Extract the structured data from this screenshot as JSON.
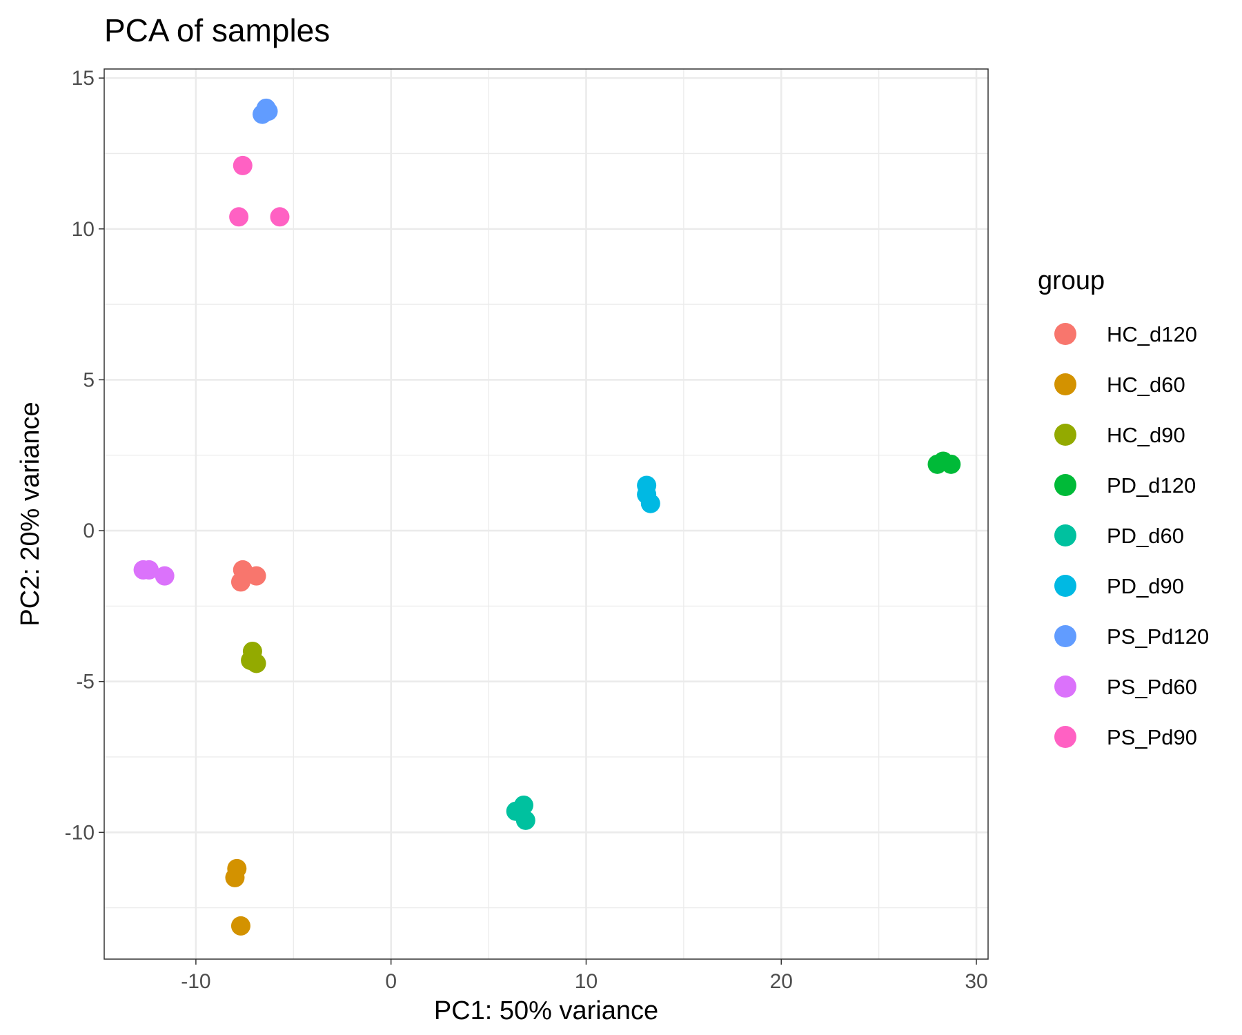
{
  "chart_data": {
    "type": "scatter",
    "title": "PCA of samples",
    "xlabel": "PC1: 50% variance",
    "ylabel": "PC2: 20% variance",
    "xlim": [
      -14.7,
      30.6
    ],
    "ylim": [
      -14.2,
      15.3
    ],
    "xticks": [
      -10,
      0,
      10,
      20,
      30
    ],
    "yticks": [
      -10,
      -5,
      0,
      5,
      10,
      15
    ],
    "grid": true,
    "legend": {
      "title": "group",
      "position": "right"
    },
    "series": [
      {
        "name": "HC_d120",
        "color": "#F8766D",
        "points": [
          [
            -7.6,
            -1.3
          ],
          [
            -6.9,
            -1.5
          ],
          [
            -7.7,
            -1.7
          ]
        ]
      },
      {
        "name": "HC_d60",
        "color": "#D39200",
        "points": [
          [
            -7.9,
            -11.2
          ],
          [
            -8.0,
            -11.5
          ],
          [
            -7.7,
            -13.1
          ]
        ]
      },
      {
        "name": "HC_d90",
        "color": "#93AA00",
        "points": [
          [
            -7.1,
            -4.0
          ],
          [
            -7.2,
            -4.3
          ],
          [
            -6.9,
            -4.4
          ]
        ]
      },
      {
        "name": "PD_d120",
        "color": "#00BA38",
        "points": [
          [
            28.0,
            2.2
          ],
          [
            28.3,
            2.3
          ],
          [
            28.7,
            2.2
          ]
        ]
      },
      {
        "name": "PD_d60",
        "color": "#00C19F",
        "points": [
          [
            6.4,
            -9.3
          ],
          [
            6.8,
            -9.1
          ],
          [
            6.9,
            -9.6
          ]
        ]
      },
      {
        "name": "PD_d90",
        "color": "#00B9E3",
        "points": [
          [
            13.1,
            1.5
          ],
          [
            13.1,
            1.2
          ],
          [
            13.3,
            0.9
          ]
        ]
      },
      {
        "name": "PS_Pd120",
        "color": "#619CFF",
        "points": [
          [
            -6.6,
            13.8
          ],
          [
            -6.3,
            13.9
          ],
          [
            -6.4,
            14.0
          ]
        ]
      },
      {
        "name": "PS_Pd60",
        "color": "#DB72FB",
        "points": [
          [
            -12.7,
            -1.3
          ],
          [
            -12.4,
            -1.3
          ],
          [
            -11.6,
            -1.5
          ]
        ]
      },
      {
        "name": "PS_Pd90",
        "color": "#FF61C3",
        "points": [
          [
            -7.6,
            12.1
          ],
          [
            -7.8,
            10.4
          ],
          [
            -5.7,
            10.4
          ]
        ]
      }
    ]
  }
}
